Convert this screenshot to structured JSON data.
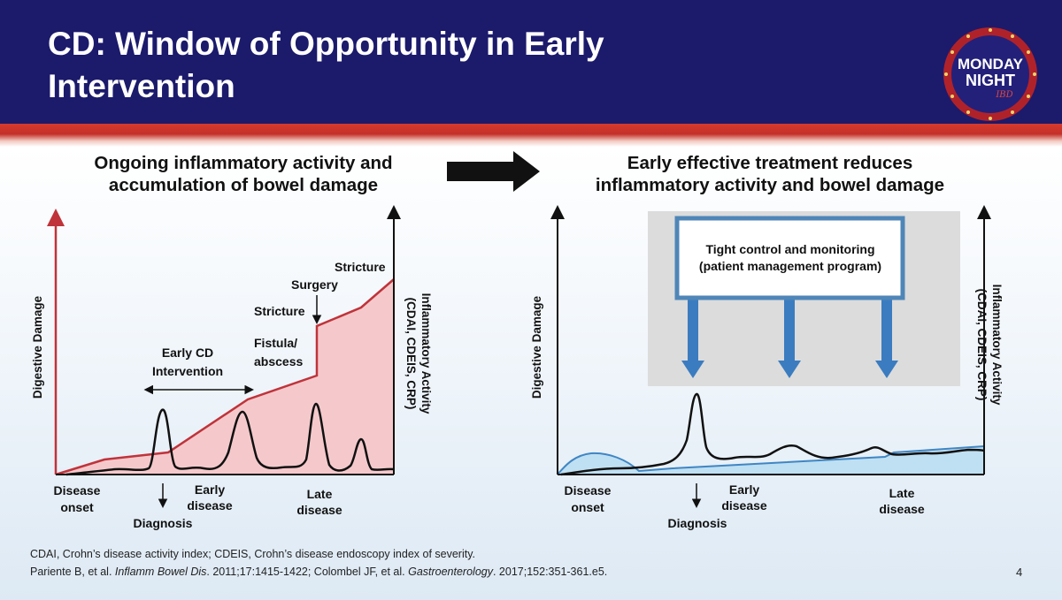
{
  "slide": {
    "title_line1": "CD: Window of Opportunity in Early",
    "title_line2": "Intervention",
    "page_number": "4"
  },
  "logo": {
    "line1": "MONDAY",
    "line2": "NIGHT",
    "line3": "IBD"
  },
  "left_panel": {
    "heading_line1": "Ongoing inflammatory activity and",
    "heading_line2": "accumulation of bowel damage",
    "y_axis_left": "Digestive Damage",
    "y_axis_right_line1": "Inflammatory Activity",
    "y_axis_right_line2": "(CDAI, CDEIS, CRP)",
    "annotations": {
      "stricture_top": "Stricture",
      "surgery": "Surgery",
      "stricture_mid": "Stricture",
      "fistula_line1": "Fistula/",
      "fistula_line2": "abscess",
      "early_cd_line1": "Early CD",
      "early_cd_line2": "Intervention"
    },
    "x_labels": {
      "onset_line1": "Disease",
      "onset_line2": "onset",
      "diagnosis": "Diagnosis",
      "early_line1": "Early",
      "early_line2": "disease",
      "late_line1": "Late",
      "late_line2": "disease"
    }
  },
  "right_panel": {
    "heading_line1": "Early effective treatment reduces",
    "heading_line2": "inflammatory activity and bowel damage",
    "y_axis_left": "Digestive Damage",
    "y_axis_right_line1": "Inflammatory Activity",
    "y_axis_right_line2": "(CDAI, CDEIS, CRP)",
    "box_line1": "Tight control and monitoring",
    "box_line2": "(patient management program)",
    "x_labels": {
      "onset_line1": "Disease",
      "onset_line2": "onset",
      "diagnosis": "Diagnosis",
      "early_line1": "Early",
      "early_line2": "disease",
      "late_line1": "Late",
      "late_line2": "disease"
    }
  },
  "footnotes": {
    "line1": "CDAI, Crohn’s disease activity index; CDEIS, Crohn’s disease endoscopy index of severity.",
    "line2_part1": "Pariente B, et al. ",
    "line2_journal1": "Inflamm Bowel Dis",
    "line2_part2": ". 2011;17:1415-1422; Colombel JF, et al. ",
    "line2_journal2": "Gastroenterology",
    "line2_part3": ". 2017;152:351-361.e5."
  },
  "colors": {
    "header_bg": "#1c1a6b",
    "stripe_red": "#d63a2c",
    "damage_line_red": "#c0333a",
    "damage_fill_red": "#f5c9cc",
    "damage_fill_blue": "#bfe0f2",
    "damage_line_blue": "#3f86c4",
    "arrow_blue": "#3b7cc0"
  }
}
